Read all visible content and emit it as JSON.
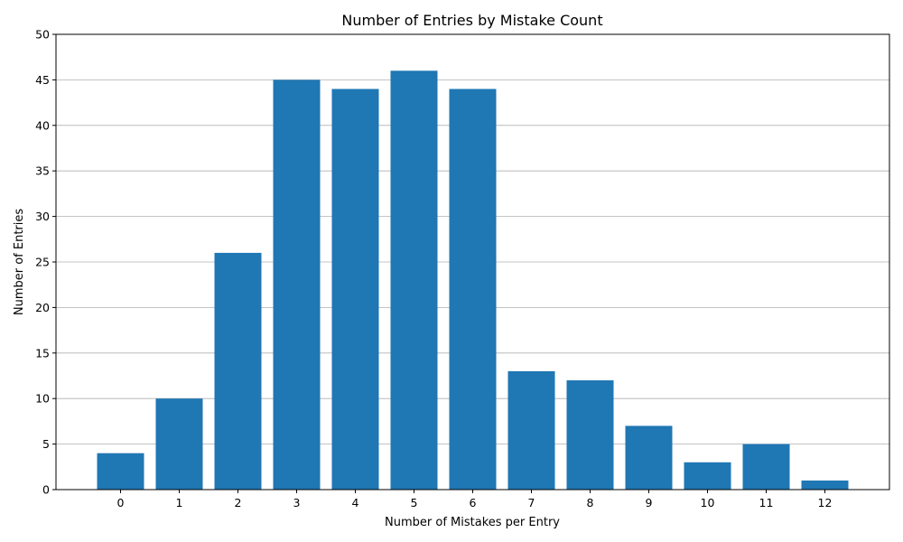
{
  "chart_data": {
    "type": "bar",
    "title": "Number of Entries by Mistake Count",
    "xlabel": "Number of Mistakes per Entry",
    "ylabel": "Number of Entries",
    "categories": [
      "0",
      "1",
      "2",
      "3",
      "4",
      "5",
      "6",
      "7",
      "8",
      "9",
      "10",
      "11",
      "12"
    ],
    "values": [
      4,
      10,
      26,
      45,
      44,
      46,
      44,
      13,
      12,
      7,
      3,
      5,
      1
    ],
    "ylim": [
      0,
      50
    ],
    "yticks": [
      0,
      5,
      10,
      15,
      20,
      25,
      30,
      35,
      40,
      45,
      50
    ],
    "grid": "y-axis horizontal lines",
    "bar_color": "#1f77b4",
    "grid_color": "#b0b0b0"
  }
}
